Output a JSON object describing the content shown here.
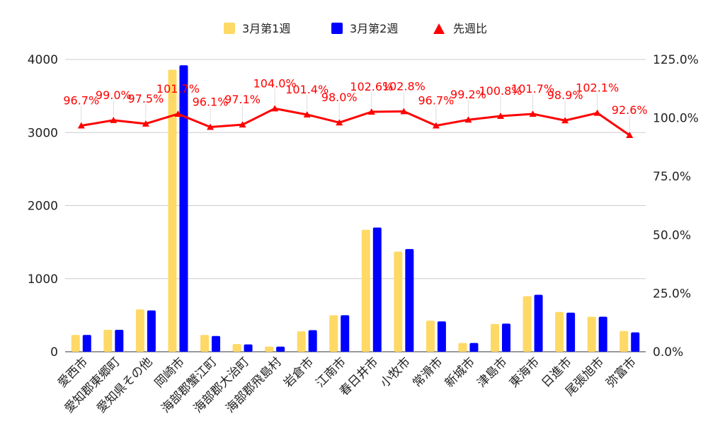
{
  "chart_data": {
    "type": "bar",
    "categories": [
      "愛西市",
      "愛知郡東郷町",
      "愛知県その他",
      "岡崎市",
      "海部郡蟹江町",
      "海部郡大治町",
      "海部郡飛島村",
      "岩倉市",
      "江南市",
      "春日井市",
      "小牧市",
      "常滑市",
      "新城市",
      "津島市",
      "東海市",
      "日進市",
      "尾張旭市",
      "弥富市"
    ],
    "series": [
      {
        "name": "3月第1週",
        "type": "bar",
        "axis": "left",
        "color": "#ffd966",
        "values": [
          230,
          300,
          580,
          3860,
          230,
          105,
          70,
          280,
          500,
          1670,
          1370,
          425,
          120,
          380,
          760,
          545,
          480,
          285
        ]
      },
      {
        "name": "3月第2週",
        "type": "bar",
        "axis": "left",
        "color": "#0000ff",
        "values": [
          230,
          300,
          565,
          3920,
          215,
          100,
          70,
          295,
          500,
          1700,
          1405,
          415,
          120,
          385,
          780,
          535,
          480,
          265
        ]
      },
      {
        "name": "先週比",
        "type": "line",
        "axis": "right",
        "color": "#ff0000",
        "marker": "triangle",
        "values": [
          96.7,
          99.0,
          97.5,
          101.7,
          96.1,
          97.1,
          104.0,
          101.4,
          98.0,
          102.6,
          102.8,
          96.7,
          99.2,
          100.8,
          101.7,
          98.9,
          102.1,
          92.6
        ],
        "labels": [
          "96.7%",
          "99.0%",
          "97.5%",
          "101.7%",
          "96.1%",
          "97.1%",
          "104.0%",
          "101.4%",
          "98.0%",
          "102.6%",
          "102.8%",
          "96.7%",
          "99.2%",
          "100.8%",
          "101.7%",
          "98.9%",
          "102.1%",
          "92.6%"
        ]
      }
    ],
    "y_left": {
      "ylim": [
        0,
        4000
      ],
      "ticks": [
        "0",
        "1000",
        "2000",
        "3000",
        "4000"
      ]
    },
    "y_right": {
      "ylim": [
        0,
        125
      ],
      "ticks": [
        "0.0%",
        "25.0%",
        "50.0%",
        "75.0%",
        "100.0%",
        "125.0%"
      ]
    },
    "title": "",
    "xlabel": "",
    "ylabel": "",
    "legend_position": "top-center",
    "grid": true
  }
}
